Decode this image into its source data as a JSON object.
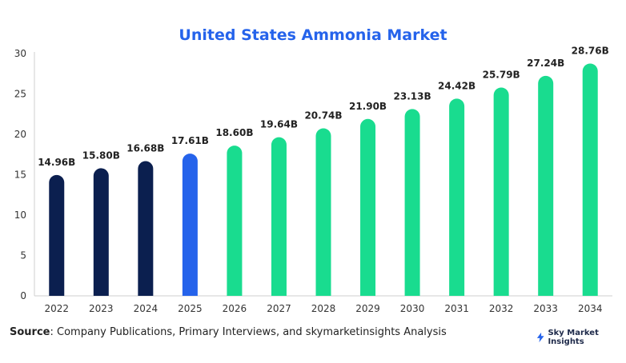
{
  "chart_data": {
    "type": "bar",
    "title": "United States Ammonia Market",
    "categories": [
      "2022",
      "2023",
      "2024",
      "2025",
      "2026",
      "2027",
      "2028",
      "2029",
      "2030",
      "2031",
      "2032",
      "2033",
      "2034"
    ],
    "values": [
      14.96,
      15.8,
      16.68,
      17.61,
      18.6,
      19.64,
      20.74,
      21.9,
      23.13,
      24.42,
      25.79,
      27.24,
      28.76
    ],
    "data_labels": [
      "14.96B",
      "15.80B",
      "16.68B",
      "17.61B",
      "18.60B",
      "19.64B",
      "20.74B",
      "21.90B",
      "23.13B",
      "24.42B",
      "25.79B",
      "27.24B",
      "28.76B"
    ],
    "ylim": [
      0,
      30
    ],
    "yticks": [
      0,
      5,
      10,
      15,
      20,
      25,
      30
    ],
    "xlabel": "",
    "ylabel": "",
    "grid": false,
    "bar_colors": [
      "#0b1f4f",
      "#0b1f4f",
      "#0b1f4f",
      "#2563eb",
      "#19dc8f",
      "#19dc8f",
      "#19dc8f",
      "#19dc8f",
      "#19dc8f",
      "#19dc8f",
      "#19dc8f",
      "#19dc8f",
      "#19dc8f"
    ]
  },
  "footer": {
    "source_label": "Source",
    "source_text": ": Company Publications, Primary Interviews, and skymarketinsights Analysis",
    "brand": "Sky Market Insights",
    "brand_icon": "lightning-icon"
  }
}
